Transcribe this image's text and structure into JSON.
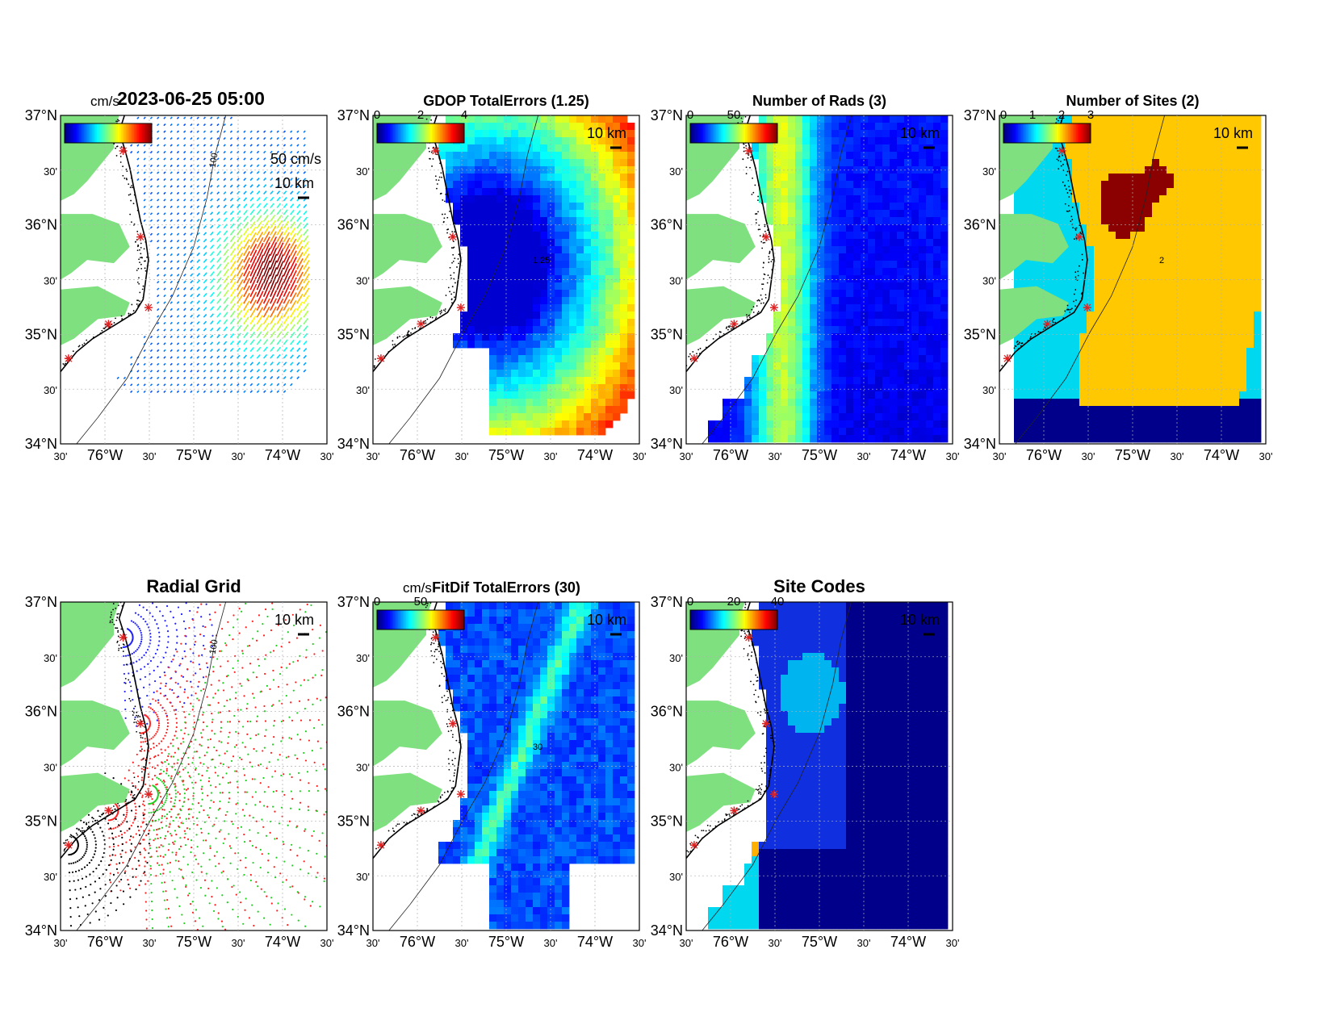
{
  "figure_title": "2023-06-25 05:00",
  "colorbar_unit": "cm/s",
  "lat_ticks": [
    "37°N",
    "30'",
    "36°N",
    "30'",
    "35°N",
    "30'",
    "34°N"
  ],
  "lon_ticks": [
    "30'",
    "76°W",
    "30'",
    "75°W",
    "30'",
    "74°W",
    "30'"
  ],
  "scale_label": "10 km",
  "vector_scale_label": "50 cm/s",
  "contour_label": "100",
  "colors": {
    "land": "#7fe07f",
    "coast": "#000000",
    "site_marker": "#e02020",
    "grid": "#b0b0b0"
  },
  "panels": [
    {
      "id": "currents",
      "title": "",
      "cbar_ticks": [],
      "cbar_unit": "cm/s",
      "show_scale": true
    },
    {
      "id": "gdop",
      "title": "GDOP TotalErrors (1.25)",
      "cbar_ticks": [
        "0",
        "2",
        "4"
      ],
      "cbar_unit": "",
      "contour": "1.25"
    },
    {
      "id": "nrads",
      "title": "Number of Rads (3)",
      "cbar_ticks": [
        "0",
        "50"
      ],
      "cbar_unit": ""
    },
    {
      "id": "nsites",
      "title": "Number of Sites (2)",
      "cbar_ticks": [
        "0",
        "1",
        "2",
        "3"
      ],
      "cbar_unit": "",
      "contour": "2"
    },
    {
      "id": "radial",
      "title": "Radial Grid",
      "cbar_ticks": [],
      "cbar_unit": ""
    },
    {
      "id": "fitdif",
      "title": "FitDif TotalErrors (30)",
      "cbar_ticks": [
        "0",
        "50"
      ],
      "cbar_unit": "cm/s",
      "contour": "30"
    },
    {
      "id": "sitecodes",
      "title": "Site Codes",
      "cbar_ticks": [
        "0",
        "20",
        "40"
      ],
      "cbar_unit": ""
    }
  ]
}
